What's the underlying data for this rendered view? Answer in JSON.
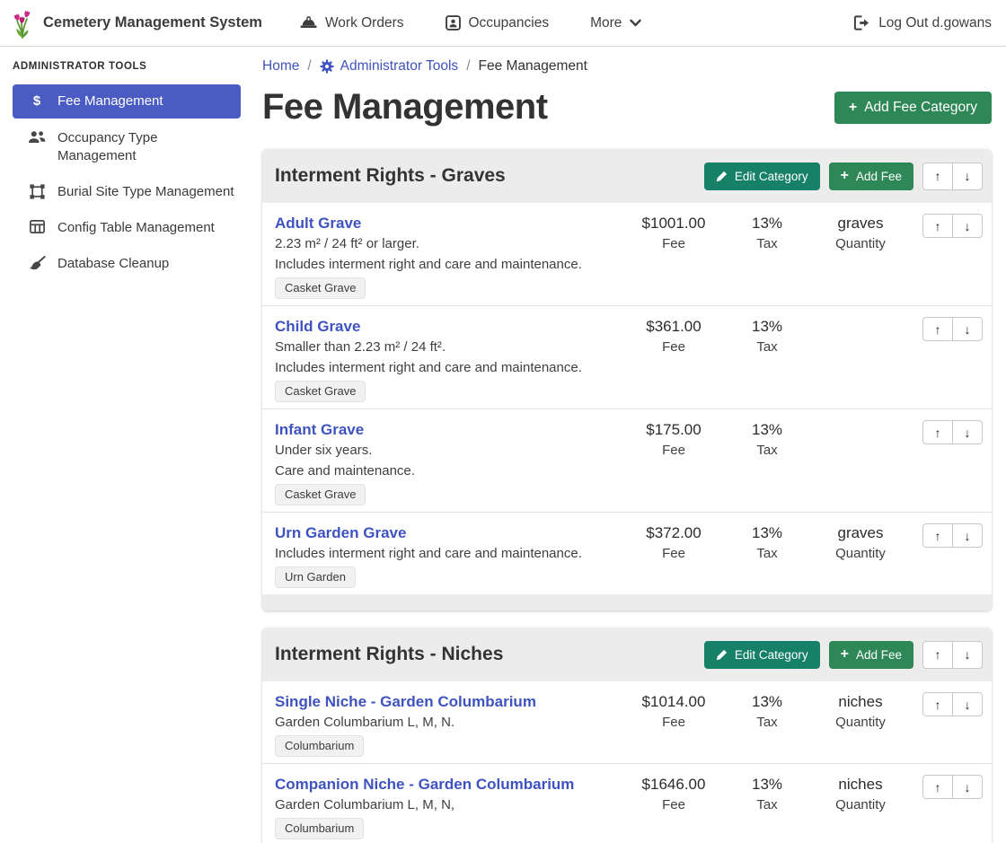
{
  "navbar": {
    "brand": "Cemetery Management System",
    "items": [
      {
        "label": "Work Orders",
        "icon": "hard-hat-icon"
      },
      {
        "label": "Occupancies",
        "icon": "id-badge-icon"
      },
      {
        "label": "More",
        "icon": "chevron-down-icon"
      }
    ],
    "logout_label": "Log Out d.gowans"
  },
  "sidebar": {
    "heading": "ADMINISTRATOR TOOLS",
    "items": [
      {
        "label": "Fee Management",
        "icon": "dollar-icon",
        "active": true
      },
      {
        "label": "Occupancy Type Management",
        "icon": "users-icon",
        "active": false
      },
      {
        "label": "Burial Site Type Management",
        "icon": "vector-square-icon",
        "active": false
      },
      {
        "label": "Config Table Management",
        "icon": "table-icon",
        "active": false
      },
      {
        "label": "Database Cleanup",
        "icon": "broom-icon",
        "active": false
      }
    ]
  },
  "breadcrumb": {
    "home": "Home",
    "separator": "/",
    "section": "Administrator Tools",
    "current": "Fee Management"
  },
  "page": {
    "title": "Fee Management",
    "add_category_label": "Add Fee Category"
  },
  "category_actions": {
    "edit_label": "Edit Category",
    "add_fee_label": "Add Fee"
  },
  "labels": {
    "fee": "Fee",
    "tax": "Tax",
    "quantity": "Quantity"
  },
  "icons": {
    "up_arrow": "↑",
    "down_arrow": "↓",
    "plus": "+",
    "dollar": "$"
  },
  "colors": {
    "active_item": "#4a5cc4",
    "link": "#3e53c0",
    "button_green": "#2e8757",
    "button_teal": "#178069",
    "card_header_bg": "#ececec"
  },
  "categories": [
    {
      "title": "Interment Rights - Graves",
      "fees": [
        {
          "name": "Adult Grave",
          "descriptions": [
            "2.23 m² / 24 ft² or larger.",
            "Includes interment right and care and maintenance."
          ],
          "badge": "Casket Grave",
          "fee": "$1001.00",
          "tax": "13%",
          "quantity": "graves"
        },
        {
          "name": "Child Grave",
          "descriptions": [
            "Smaller than 2.23 m² / 24 ft².",
            "Includes interment right and care and maintenance."
          ],
          "badge": "Casket Grave",
          "fee": "$361.00",
          "tax": "13%",
          "quantity": ""
        },
        {
          "name": "Infant Grave",
          "descriptions": [
            "Under six years.",
            "Care and maintenance."
          ],
          "badge": "Casket Grave",
          "fee": "$175.00",
          "tax": "13%",
          "quantity": ""
        },
        {
          "name": "Urn Garden Grave",
          "descriptions": [
            "Includes interment right and care and maintenance."
          ],
          "badge": "Urn Garden",
          "fee": "$372.00",
          "tax": "13%",
          "quantity": "graves"
        }
      ]
    },
    {
      "title": "Interment Rights - Niches",
      "fees": [
        {
          "name": "Single Niche - Garden Columbarium",
          "descriptions": [
            "Garden Columbarium L, M, N."
          ],
          "badge": "Columbarium",
          "fee": "$1014.00",
          "tax": "13%",
          "quantity": "niches"
        },
        {
          "name": "Companion Niche - Garden Columbarium",
          "descriptions": [
            "Garden Columbarium L, M, N,"
          ],
          "badge": "Columbarium",
          "fee": "$1646.00",
          "tax": "13%",
          "quantity": "niches"
        }
      ]
    }
  ]
}
